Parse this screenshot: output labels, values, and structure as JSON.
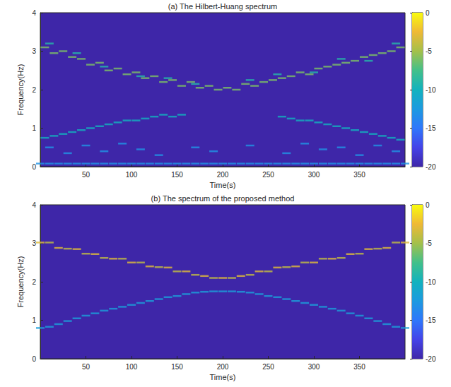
{
  "chart_data": [
    {
      "type": "heatmap",
      "title": "(a) The Hilbert-Huang spectrum",
      "x_label": "Time(s)",
      "y_label": "Frequency(Hz)",
      "xlim": [
        0,
        400
      ],
      "xticks": [
        50,
        100,
        150,
        200,
        250,
        300,
        350
      ],
      "ylim": [
        0,
        4
      ],
      "yticks": [
        0,
        1,
        2,
        3,
        4
      ],
      "fill_value": -20,
      "colorbar": {
        "range": [
          -20,
          0
        ],
        "ticks": [
          0,
          -5,
          -10,
          -15,
          -20
        ]
      },
      "cells": [
        [
          5,
          3.1,
          -6
        ],
        [
          15,
          2.95,
          -6
        ],
        [
          25,
          3.0,
          -6
        ],
        [
          35,
          2.85,
          -6
        ],
        [
          45,
          2.8,
          -6
        ],
        [
          55,
          2.65,
          -6
        ],
        [
          65,
          2.7,
          -6
        ],
        [
          75,
          2.5,
          -6
        ],
        [
          85,
          2.55,
          -6
        ],
        [
          95,
          2.4,
          -6
        ],
        [
          105,
          2.45,
          -6
        ],
        [
          115,
          2.3,
          -6
        ],
        [
          125,
          2.35,
          -6
        ],
        [
          135,
          2.2,
          -6
        ],
        [
          145,
          2.25,
          -6
        ],
        [
          155,
          2.1,
          -6
        ],
        [
          165,
          2.2,
          -6
        ],
        [
          175,
          2.05,
          -6
        ],
        [
          185,
          2.1,
          -6
        ],
        [
          195,
          2.0,
          -6
        ],
        [
          205,
          2.05,
          -6
        ],
        [
          215,
          2.0,
          -6
        ],
        [
          225,
          2.15,
          -6
        ],
        [
          235,
          2.1,
          -6
        ],
        [
          245,
          2.2,
          -6
        ],
        [
          255,
          2.25,
          -6
        ],
        [
          265,
          2.3,
          -6
        ],
        [
          275,
          2.35,
          -6
        ],
        [
          285,
          2.45,
          -6
        ],
        [
          295,
          2.4,
          -6
        ],
        [
          305,
          2.55,
          -6
        ],
        [
          315,
          2.6,
          -6
        ],
        [
          325,
          2.65,
          -6
        ],
        [
          335,
          2.7,
          -6
        ],
        [
          345,
          2.75,
          -6
        ],
        [
          355,
          2.85,
          -6
        ],
        [
          365,
          2.9,
          -6
        ],
        [
          375,
          2.95,
          -6
        ],
        [
          385,
          3.0,
          -6
        ],
        [
          395,
          3.1,
          -6
        ],
        [
          10,
          3.2,
          -9
        ],
        [
          40,
          2.95,
          -9
        ],
        [
          70,
          2.6,
          -9
        ],
        [
          110,
          2.35,
          -9
        ],
        [
          140,
          2.3,
          -9
        ],
        [
          170,
          2.15,
          -9
        ],
        [
          230,
          2.25,
          -9
        ],
        [
          260,
          2.4,
          -9
        ],
        [
          300,
          2.45,
          -9
        ],
        [
          330,
          2.8,
          -9
        ],
        [
          360,
          2.75,
          -9
        ],
        [
          390,
          3.2,
          -9
        ],
        [
          5,
          0.75,
          -10
        ],
        [
          15,
          0.8,
          -10
        ],
        [
          25,
          0.85,
          -10
        ],
        [
          35,
          0.9,
          -10
        ],
        [
          45,
          0.95,
          -10
        ],
        [
          55,
          1.0,
          -10
        ],
        [
          65,
          1.05,
          -10
        ],
        [
          75,
          1.1,
          -10
        ],
        [
          85,
          1.15,
          -10
        ],
        [
          95,
          1.2,
          -10
        ],
        [
          105,
          1.2,
          -10
        ],
        [
          115,
          1.25,
          -10
        ],
        [
          125,
          1.3,
          -10
        ],
        [
          135,
          1.35,
          -10
        ],
        [
          145,
          1.3,
          -10
        ],
        [
          155,
          1.35,
          -10
        ],
        [
          265,
          1.3,
          -10
        ],
        [
          275,
          1.25,
          -10
        ],
        [
          285,
          1.2,
          -10
        ],
        [
          295,
          1.2,
          -10
        ],
        [
          305,
          1.15,
          -10
        ],
        [
          315,
          1.1,
          -10
        ],
        [
          325,
          1.05,
          -10
        ],
        [
          335,
          1.0,
          -10
        ],
        [
          345,
          0.95,
          -10
        ],
        [
          355,
          0.9,
          -10
        ],
        [
          365,
          0.85,
          -10
        ],
        [
          375,
          0.8,
          -10
        ],
        [
          385,
          0.75,
          -10
        ],
        [
          395,
          0.7,
          -10
        ],
        [
          10,
          0.5,
          -13
        ],
        [
          30,
          0.35,
          -13
        ],
        [
          50,
          0.55,
          -13
        ],
        [
          70,
          0.4,
          -13
        ],
        [
          90,
          0.6,
          -13
        ],
        [
          110,
          0.45,
          -13
        ],
        [
          130,
          0.3,
          -13
        ],
        [
          170,
          0.5,
          -13
        ],
        [
          190,
          0.4,
          -13
        ],
        [
          230,
          0.55,
          -13
        ],
        [
          270,
          0.35,
          -13
        ],
        [
          290,
          0.6,
          -13
        ],
        [
          310,
          0.45,
          -13
        ],
        [
          330,
          0.5,
          -13
        ],
        [
          350,
          0.3,
          -13
        ],
        [
          370,
          0.55,
          -13
        ],
        [
          390,
          0.4,
          -13
        ],
        [
          0,
          0.08,
          -13
        ],
        [
          10,
          0.08,
          -13
        ],
        [
          20,
          0.08,
          -13
        ],
        [
          30,
          0.08,
          -13
        ],
        [
          40,
          0.08,
          -13
        ],
        [
          50,
          0.08,
          -13
        ],
        [
          60,
          0.08,
          -13
        ],
        [
          70,
          0.08,
          -13
        ],
        [
          80,
          0.08,
          -13
        ],
        [
          90,
          0.08,
          -13
        ],
        [
          100,
          0.08,
          -13
        ],
        [
          110,
          0.08,
          -13
        ],
        [
          120,
          0.08,
          -13
        ],
        [
          130,
          0.08,
          -13
        ],
        [
          140,
          0.08,
          -13
        ],
        [
          150,
          0.08,
          -13
        ],
        [
          160,
          0.08,
          -13
        ],
        [
          170,
          0.08,
          -13
        ],
        [
          180,
          0.08,
          -13
        ],
        [
          190,
          0.08,
          -13
        ],
        [
          200,
          0.08,
          -13
        ],
        [
          210,
          0.08,
          -13
        ],
        [
          220,
          0.08,
          -13
        ],
        [
          230,
          0.08,
          -13
        ],
        [
          240,
          0.08,
          -13
        ],
        [
          250,
          0.08,
          -13
        ],
        [
          260,
          0.08,
          -13
        ],
        [
          270,
          0.08,
          -13
        ],
        [
          280,
          0.08,
          -13
        ],
        [
          290,
          0.08,
          -13
        ],
        [
          300,
          0.08,
          -13
        ],
        [
          310,
          0.08,
          -13
        ],
        [
          320,
          0.08,
          -13
        ],
        [
          330,
          0.08,
          -13
        ],
        [
          340,
          0.08,
          -13
        ],
        [
          350,
          0.08,
          -13
        ],
        [
          360,
          0.08,
          -13
        ],
        [
          370,
          0.08,
          -13
        ],
        [
          380,
          0.08,
          -13
        ],
        [
          390,
          0.08,
          -13
        ],
        [
          400,
          0.08,
          -13
        ]
      ]
    },
    {
      "type": "heatmap",
      "title": "(b) The spectrum of the proposed method",
      "x_label": "Time(s)",
      "y_label": "Frequency(Hz)",
      "xlim": [
        0,
        400
      ],
      "xticks": [
        50,
        100,
        150,
        200,
        250,
        300,
        350
      ],
      "ylim": [
        0,
        4
      ],
      "yticks": [
        0,
        1,
        2,
        3,
        4
      ],
      "fill_value": -20,
      "colorbar": {
        "range": [
          -20,
          0
        ],
        "ticks": [
          0,
          -5,
          -10,
          -15,
          -20
        ]
      },
      "cells": [
        [
          0,
          3.02,
          -3
        ],
        [
          10,
          3.02,
          -4
        ],
        [
          20,
          2.88,
          -3
        ],
        [
          30,
          2.86,
          -4
        ],
        [
          40,
          2.85,
          -3
        ],
        [
          50,
          2.73,
          -4
        ],
        [
          60,
          2.72,
          -3
        ],
        [
          70,
          2.62,
          -4
        ],
        [
          80,
          2.6,
          -3
        ],
        [
          90,
          2.6,
          -4
        ],
        [
          100,
          2.5,
          -3
        ],
        [
          110,
          2.5,
          -4
        ],
        [
          120,
          2.4,
          -3
        ],
        [
          130,
          2.38,
          -4
        ],
        [
          140,
          2.37,
          -3
        ],
        [
          150,
          2.27,
          -4
        ],
        [
          160,
          2.27,
          -3
        ],
        [
          170,
          2.18,
          -4
        ],
        [
          180,
          2.15,
          -3
        ],
        [
          190,
          2.1,
          -4
        ],
        [
          200,
          2.1,
          -3
        ],
        [
          210,
          2.1,
          -4
        ],
        [
          220,
          2.15,
          -3
        ],
        [
          230,
          2.18,
          -4
        ],
        [
          240,
          2.27,
          -3
        ],
        [
          250,
          2.27,
          -4
        ],
        [
          260,
          2.37,
          -3
        ],
        [
          270,
          2.38,
          -4
        ],
        [
          280,
          2.4,
          -3
        ],
        [
          290,
          2.5,
          -4
        ],
        [
          300,
          2.5,
          -3
        ],
        [
          310,
          2.6,
          -4
        ],
        [
          320,
          2.6,
          -3
        ],
        [
          330,
          2.62,
          -4
        ],
        [
          340,
          2.72,
          -3
        ],
        [
          350,
          2.73,
          -4
        ],
        [
          360,
          2.85,
          -3
        ],
        [
          370,
          2.86,
          -4
        ],
        [
          380,
          2.88,
          -3
        ],
        [
          390,
          3.02,
          -4
        ],
        [
          400,
          3.02,
          -3
        ],
        [
          0,
          0.8,
          -12
        ],
        [
          10,
          0.83,
          -12
        ],
        [
          20,
          0.9,
          -12
        ],
        [
          30,
          0.98,
          -12
        ],
        [
          40,
          1.05,
          -12
        ],
        [
          50,
          1.12,
          -12
        ],
        [
          60,
          1.18,
          -12
        ],
        [
          70,
          1.25,
          -12
        ],
        [
          80,
          1.3,
          -12
        ],
        [
          90,
          1.35,
          -12
        ],
        [
          100,
          1.4,
          -12
        ],
        [
          110,
          1.45,
          -12
        ],
        [
          120,
          1.5,
          -12
        ],
        [
          130,
          1.55,
          -12
        ],
        [
          140,
          1.6,
          -12
        ],
        [
          150,
          1.63,
          -12
        ],
        [
          160,
          1.68,
          -12
        ],
        [
          170,
          1.72,
          -12
        ],
        [
          180,
          1.74,
          -12
        ],
        [
          190,
          1.75,
          -12
        ],
        [
          200,
          1.75,
          -12
        ],
        [
          210,
          1.75,
          -12
        ],
        [
          220,
          1.74,
          -12
        ],
        [
          230,
          1.72,
          -12
        ],
        [
          240,
          1.68,
          -12
        ],
        [
          250,
          1.63,
          -12
        ],
        [
          260,
          1.6,
          -12
        ],
        [
          270,
          1.55,
          -12
        ],
        [
          280,
          1.5,
          -12
        ],
        [
          290,
          1.45,
          -12
        ],
        [
          300,
          1.4,
          -12
        ],
        [
          310,
          1.35,
          -12
        ],
        [
          320,
          1.3,
          -12
        ],
        [
          330,
          1.25,
          -12
        ],
        [
          340,
          1.18,
          -12
        ],
        [
          350,
          1.12,
          -12
        ],
        [
          360,
          1.05,
          -12
        ],
        [
          370,
          0.98,
          -12
        ],
        [
          380,
          0.9,
          -12
        ],
        [
          390,
          0.83,
          -12
        ],
        [
          400,
          0.8,
          -12
        ]
      ]
    }
  ]
}
